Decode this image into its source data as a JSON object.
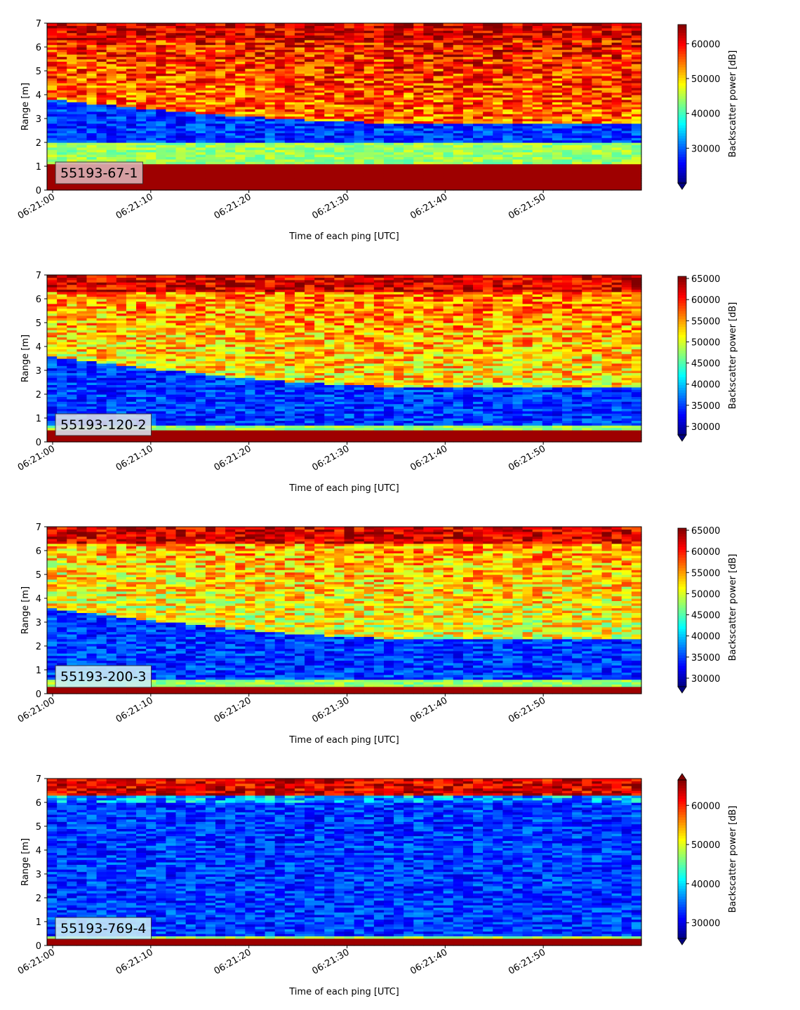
{
  "chart_data": [
    {
      "type": "heatmap",
      "label": "55193-67-1",
      "label_bg": "#dcb0b4",
      "xlabel": "Time of each ping [UTC]",
      "ylabel": "Range [m]",
      "cbar_label": "Backscatter power [dB]",
      "xlim": [
        0,
        60
      ],
      "ylim": [
        0,
        7
      ],
      "x_ticks": [
        0,
        10,
        20,
        30,
        40,
        50
      ],
      "x_ticklabels": [
        "06:21:00",
        "06:21:10",
        "06:21:20",
        "06:21:30",
        "06:21:40",
        "06:21:50"
      ],
      "y_ticks": [
        0,
        1,
        2,
        3,
        4,
        5,
        6,
        7
      ],
      "clim": [
        20000,
        65500
      ],
      "cbar_ticks": [
        30000,
        40000,
        50000,
        60000
      ],
      "cbar_extend": "min",
      "profile": {
        "bottom_strong": 1.1,
        "blue_band": [
          2.0,
          3.8
        ],
        "blue_end": [
          2.2,
          2.8
        ],
        "upper_level": 0.82
      }
    },
    {
      "type": "heatmap",
      "label": "55193-120-2",
      "label_bg": "#d8dde8",
      "xlabel": "Time of each ping [UTC]",
      "ylabel": "Range [m]",
      "cbar_label": "Backscatter power [dB]",
      "xlim": [
        0,
        60
      ],
      "ylim": [
        0,
        7
      ],
      "x_ticks": [
        0,
        10,
        20,
        30,
        40,
        50
      ],
      "x_ticklabels": [
        "06:21:00",
        "06:21:10",
        "06:21:20",
        "06:21:30",
        "06:21:40",
        "06:21:50"
      ],
      "y_ticks": [
        0,
        1,
        2,
        3,
        4,
        5,
        6,
        7
      ],
      "clim": [
        28000,
        65500
      ],
      "cbar_ticks": [
        30000,
        35000,
        40000,
        45000,
        50000,
        55000,
        60000,
        65000
      ],
      "cbar_extend": "min",
      "profile": {
        "bottom_strong": 0.45,
        "blue_band": [
          0.7,
          3.6
        ],
        "blue_end": [
          0.7,
          2.3
        ],
        "upper_level": 0.7
      }
    },
    {
      "type": "heatmap",
      "label": "55193-200-3",
      "label_bg": "#c9eef6",
      "xlabel": "Time of each ping [UTC]",
      "ylabel": "Range [m]",
      "cbar_label": "Backscatter power [dB]",
      "xlim": [
        0,
        60
      ],
      "ylim": [
        0,
        7
      ],
      "x_ticks": [
        0,
        10,
        20,
        30,
        40,
        50
      ],
      "x_ticklabels": [
        "06:21:00",
        "06:21:10",
        "06:21:20",
        "06:21:30",
        "06:21:40",
        "06:21:50"
      ],
      "y_ticks": [
        0,
        1,
        2,
        3,
        4,
        5,
        6,
        7
      ],
      "clim": [
        28000,
        65500
      ],
      "cbar_ticks": [
        30000,
        35000,
        40000,
        45000,
        50000,
        55000,
        60000,
        65000
      ],
      "cbar_extend": "min",
      "profile": {
        "bottom_strong": 0.35,
        "blue_band": [
          0.6,
          3.6
        ],
        "blue_end": [
          0.6,
          2.3
        ],
        "upper_level": 0.66
      }
    },
    {
      "type": "heatmap",
      "label": "55193-769-4",
      "label_bg": "#c7ecf8",
      "xlabel": "Time of each ping [UTC]",
      "ylabel": "Range [m]",
      "cbar_label": "Backscatter power [dB]",
      "xlim": [
        0,
        60
      ],
      "ylim": [
        0,
        7
      ],
      "x_ticks": [
        0,
        10,
        20,
        30,
        40,
        50
      ],
      "x_ticklabels": [
        "06:21:00",
        "06:21:10",
        "06:21:20",
        "06:21:30",
        "06:21:40",
        "06:21:50"
      ],
      "y_ticks": [
        0,
        1,
        2,
        3,
        4,
        5,
        6,
        7
      ],
      "clim": [
        26000,
        66500
      ],
      "cbar_ticks": [
        30000,
        40000,
        50000,
        60000
      ],
      "cbar_extend": "both",
      "profile": {
        "bottom_strong": 0.3,
        "blue_band": [
          0.4,
          6.0
        ],
        "blue_end": [
          0.4,
          6.0
        ],
        "upper_level": 0.35
      }
    }
  ]
}
